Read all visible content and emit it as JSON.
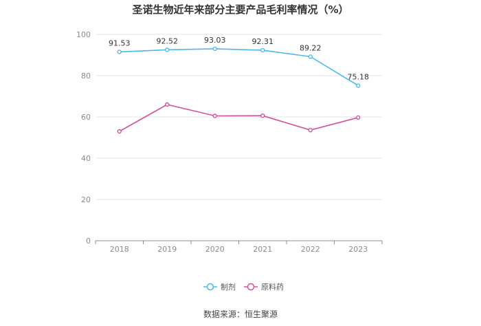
{
  "chart_data": {
    "type": "line",
    "title": "圣诺生物近年来部分主要产品毛利率情况（%）",
    "categories": [
      "2018",
      "2019",
      "2020",
      "2021",
      "2022",
      "2023"
    ],
    "series": [
      {
        "name": "制剂",
        "color": "#4db8ee",
        "values": [
          91.53,
          92.52,
          93.03,
          92.31,
          89.22,
          75.18
        ],
        "show_labels": true
      },
      {
        "name": "原料药",
        "color": "#d3519a",
        "values": [
          53.0,
          66.0,
          60.5,
          60.6,
          53.6,
          59.7
        ],
        "show_labels": false
      }
    ],
    "ylim": [
      0,
      100
    ],
    "yticks": [
      0,
      20,
      40,
      60,
      80,
      100
    ],
    "grid": true,
    "legend_position": "bottom"
  },
  "source": "数据来源：恒生聚源"
}
